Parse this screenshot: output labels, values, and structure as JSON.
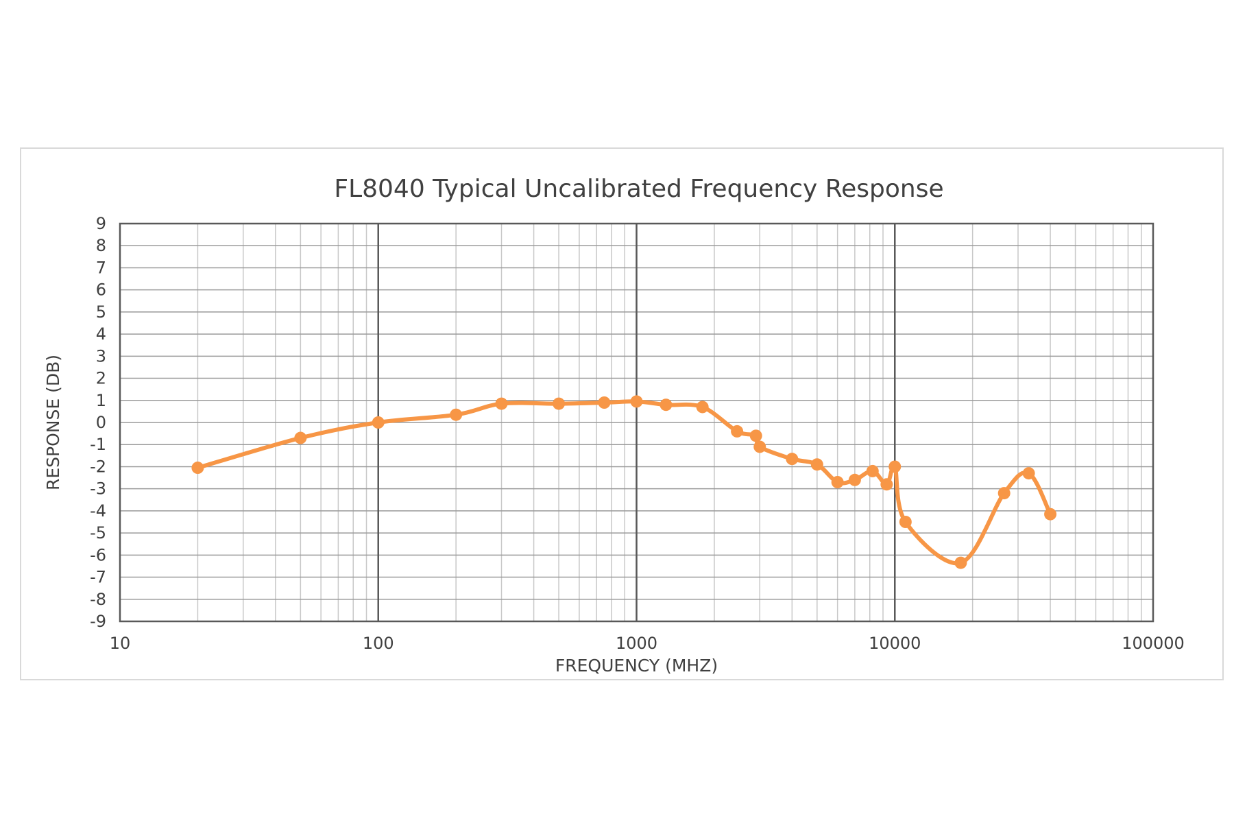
{
  "chart_data": {
    "type": "line",
    "title": "FL8040 Typical Uncalibrated Frequency Response",
    "xlabel": "FREQUENCY (MHZ)",
    "ylabel": "RESPONSE (DB)",
    "x_scale": "log",
    "xlim": [
      10,
      100000
    ],
    "ylim": [
      -9,
      9
    ],
    "x_tick_labels": [
      "10",
      "100",
      "1000",
      "10000",
      "100000"
    ],
    "y_tick_labels": [
      "9",
      "8",
      "7",
      "6",
      "5",
      "4",
      "3",
      "2",
      "1",
      "0",
      "-1",
      "-2",
      "-3",
      "-4",
      "-5",
      "-6",
      "-7",
      "-8",
      "-9"
    ],
    "grid": true,
    "legend": "none",
    "line_color": "#f79646",
    "smooth": true,
    "series": [
      {
        "x": [
          20,
          50,
          100,
          200,
          300,
          500,
          750,
          1000,
          1300,
          1800,
          2450,
          2900,
          3000,
          4000,
          5000,
          6000,
          7000,
          8200,
          9300,
          10000,
          11000,
          18000,
          26500,
          33000,
          40000
        ],
        "values": [
          -2.05,
          -0.7,
          0.0,
          0.35,
          0.85,
          0.85,
          0.9,
          0.95,
          0.8,
          0.7,
          -0.4,
          -0.6,
          -1.1,
          -1.65,
          -1.9,
          -2.7,
          -2.6,
          -2.2,
          -2.8,
          -2.0,
          -4.5,
          -6.35,
          -3.2,
          -2.3,
          -4.15
        ]
      }
    ]
  }
}
